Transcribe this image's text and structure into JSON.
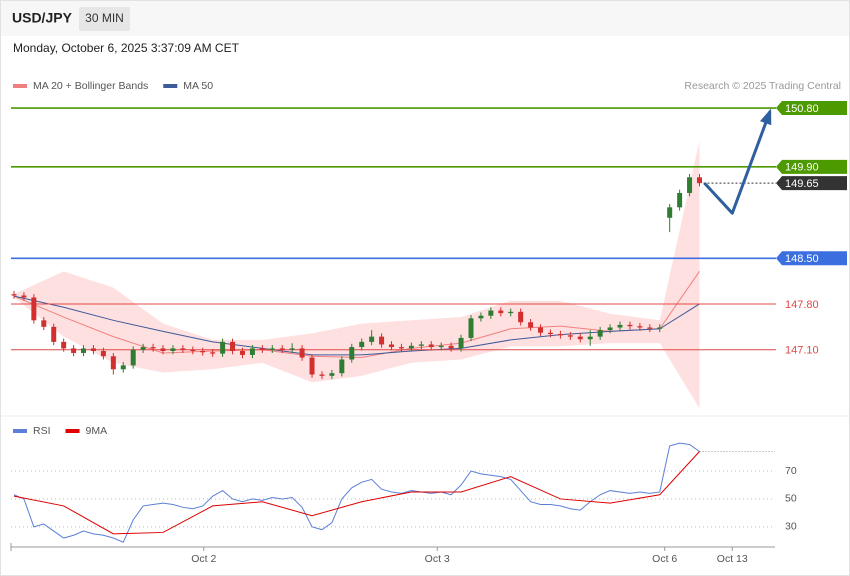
{
  "header": {
    "symbol": "USD/JPY",
    "interval": "30 MIN",
    "timestamp": "Monday, October 6, 2025 3:37:09 AM CET"
  },
  "chart_data": [
    {
      "type": "candlestick",
      "note": "Research © 2025 Trading Central",
      "xlim": [
        -0.2,
        76.6
      ],
      "ylim": [
        146.1,
        151.0
      ],
      "up_color": "#2e7d32",
      "down_color": "#d32f2f",
      "x": [
        0,
        1,
        2,
        3,
        4,
        5,
        6,
        7,
        8,
        9,
        10,
        11,
        12,
        13,
        14,
        15,
        16,
        17,
        18,
        19,
        20,
        21,
        22,
        23,
        24,
        25,
        26,
        27,
        28,
        29,
        30,
        31,
        32,
        33,
        34,
        35,
        36,
        37,
        38,
        39,
        40,
        41,
        42,
        43,
        44,
        45,
        46,
        47,
        48,
        49,
        50,
        51,
        52,
        53,
        54,
        55,
        56,
        57,
        58,
        59,
        60,
        61,
        62,
        63,
        64,
        65,
        66,
        67,
        68,
        69
      ],
      "open": [
        147.95,
        147.93,
        147.9,
        147.55,
        147.45,
        147.22,
        147.12,
        147.05,
        147.12,
        147.08,
        147.0,
        146.8,
        146.86,
        147.1,
        147.14,
        147.12,
        147.08,
        147.12,
        147.1,
        147.08,
        147.06,
        147.04,
        147.22,
        147.08,
        147.02,
        147.12,
        147.1,
        147.12,
        147.1,
        147.12,
        146.98,
        146.72,
        146.7,
        146.74,
        146.95,
        147.14,
        147.22,
        147.3,
        147.18,
        147.14,
        147.12,
        147.16,
        147.18,
        147.14,
        147.16,
        147.12,
        147.28,
        147.58,
        147.62,
        147.7,
        147.66,
        147.68,
        147.52,
        147.44,
        147.36,
        147.34,
        147.32,
        147.3,
        147.26,
        147.3,
        147.4,
        147.44,
        147.48,
        147.46,
        147.44,
        147.42,
        149.12,
        149.28,
        149.5,
        149.74
      ],
      "high": [
        148.0,
        147.98,
        147.95,
        147.6,
        147.5,
        147.27,
        147.17,
        147.17,
        147.17,
        147.13,
        147.05,
        146.91,
        147.15,
        147.19,
        147.19,
        147.17,
        147.17,
        147.17,
        147.15,
        147.13,
        147.11,
        147.27,
        147.27,
        147.13,
        147.17,
        147.17,
        147.17,
        147.17,
        147.2,
        147.17,
        147.03,
        146.77,
        146.79,
        147.0,
        147.19,
        147.27,
        147.4,
        147.35,
        147.23,
        147.19,
        147.21,
        147.23,
        147.23,
        147.21,
        147.21,
        147.33,
        147.63,
        147.67,
        147.75,
        147.75,
        147.73,
        147.73,
        147.57,
        147.49,
        147.41,
        147.39,
        147.37,
        147.35,
        147.4,
        147.45,
        147.49,
        147.53,
        147.53,
        147.51,
        147.49,
        147.49,
        149.33,
        149.55,
        149.79,
        149.79
      ],
      "low": [
        147.88,
        147.85,
        147.5,
        147.4,
        147.17,
        147.07,
        147.0,
        147.0,
        147.03,
        146.95,
        146.72,
        146.75,
        146.81,
        147.05,
        147.07,
        147.03,
        147.03,
        147.05,
        147.03,
        147.01,
        146.99,
        146.99,
        147.03,
        146.97,
        146.97,
        147.05,
        147.05,
        147.05,
        147.05,
        146.93,
        146.67,
        146.65,
        146.65,
        146.69,
        146.9,
        147.09,
        147.17,
        147.13,
        147.09,
        147.07,
        147.07,
        147.11,
        147.09,
        147.09,
        147.07,
        147.07,
        147.23,
        147.53,
        147.57,
        147.61,
        147.61,
        147.47,
        147.39,
        147.31,
        147.29,
        147.27,
        147.25,
        147.21,
        147.16,
        147.25,
        147.35,
        147.39,
        147.41,
        147.39,
        147.37,
        147.37,
        148.9,
        149.23,
        149.45,
        149.6
      ],
      "close": [
        147.93,
        147.9,
        147.55,
        147.45,
        147.22,
        147.12,
        147.05,
        147.12,
        147.08,
        147.0,
        146.8,
        146.86,
        147.1,
        147.14,
        147.12,
        147.08,
        147.12,
        147.1,
        147.08,
        147.06,
        147.04,
        147.22,
        147.08,
        147.02,
        147.12,
        147.1,
        147.12,
        147.1,
        147.12,
        146.98,
        146.72,
        146.7,
        146.74,
        146.95,
        147.14,
        147.22,
        147.3,
        147.18,
        147.14,
        147.12,
        147.16,
        147.18,
        147.14,
        147.16,
        147.12,
        147.28,
        147.58,
        147.62,
        147.7,
        147.66,
        147.68,
        147.52,
        147.44,
        147.36,
        147.34,
        147.32,
        147.3,
        147.26,
        147.3,
        147.4,
        147.44,
        147.48,
        147.46,
        147.44,
        147.42,
        147.44,
        149.28,
        149.5,
        149.74,
        149.65
      ],
      "series": [
        {
          "name": "MA 20 + Bollinger Bands",
          "color": "#f08080",
          "band_color": "#ffd6d6",
          "x": [
            0,
            5,
            10,
            15,
            20,
            25,
            30,
            35,
            40,
            45,
            50,
            55,
            60,
            65,
            69
          ],
          "values": [
            147.92,
            147.6,
            147.3,
            147.05,
            147.08,
            147.1,
            147.0,
            146.98,
            147.12,
            147.2,
            147.42,
            147.46,
            147.38,
            147.42,
            148.3
          ],
          "upper": [
            147.95,
            148.3,
            148.05,
            147.5,
            147.25,
            147.25,
            147.35,
            147.5,
            147.55,
            147.6,
            147.85,
            147.85,
            147.65,
            147.55,
            150.3
          ],
          "lower": [
            147.9,
            147.3,
            146.9,
            146.75,
            146.8,
            146.9,
            146.6,
            146.7,
            146.9,
            146.95,
            147.15,
            147.15,
            147.2,
            147.2,
            146.2
          ]
        },
        {
          "name": "MA 50",
          "color": "#3d5a99",
          "x": [
            0,
            5,
            10,
            15,
            20,
            25,
            30,
            35,
            40,
            45,
            50,
            55,
            60,
            65,
            69
          ],
          "values": [
            147.92,
            147.75,
            147.55,
            147.38,
            147.22,
            147.12,
            147.02,
            147.02,
            147.08,
            147.12,
            147.25,
            147.33,
            147.38,
            147.42,
            147.8
          ]
        }
      ],
      "forecast": {
        "color": "#2f5f9f",
        "x": [
          69.5,
          72.3,
          76.1
        ],
        "values": [
          149.65,
          149.19,
          150.75
        ]
      },
      "levels": [
        {
          "value": 150.8,
          "label": "150.80",
          "color": "#4c9a00",
          "tag": true,
          "dashed": false
        },
        {
          "value": 149.9,
          "label": "149.90",
          "color": "#4c9a00",
          "tag": true,
          "dashed": false
        },
        {
          "value": 149.65,
          "label": "149.65",
          "color": "#333333",
          "tag": true,
          "dashed": true
        },
        {
          "value": 148.5,
          "label": "148.50",
          "color": "#3b6fe0",
          "tag": true,
          "dashed": false
        },
        {
          "value": 147.8,
          "label": "147.80",
          "color": "#e04848",
          "tag": false,
          "dashed": false
        },
        {
          "value": 147.1,
          "label": "147.10",
          "color": "#e04848",
          "tag": false,
          "dashed": false
        }
      ]
    },
    {
      "type": "line",
      "xlim": [
        -0.2,
        76.6
      ],
      "ylim": [
        17,
        108
      ],
      "yticks": [
        30,
        50,
        70
      ],
      "grid": true,
      "xticks": [
        {
          "value": 19.1,
          "label": "Oct 2"
        },
        {
          "value": 42.6,
          "label": "Oct 3"
        },
        {
          "value": 65.5,
          "label": "Oct 6"
        },
        {
          "value": 72.3,
          "label": "Oct 13"
        }
      ],
      "series": [
        {
          "name": "RSI",
          "color": "#5b7fd6",
          "x": [
            0,
            1,
            2,
            3,
            4,
            5,
            6,
            7,
            8,
            9,
            10,
            11,
            12,
            13,
            14,
            15,
            16,
            17,
            18,
            19,
            20,
            21,
            22,
            23,
            24,
            25,
            26,
            27,
            28,
            29,
            30,
            31,
            32,
            33,
            34,
            35,
            36,
            37,
            38,
            39,
            40,
            41,
            42,
            43,
            44,
            45,
            46,
            47,
            48,
            49,
            50,
            51,
            52,
            53,
            54,
            55,
            56,
            57,
            58,
            59,
            60,
            61,
            62,
            63,
            64,
            65,
            66,
            67,
            68,
            69
          ],
          "values": [
            53,
            50,
            30,
            32,
            27,
            22,
            24,
            27,
            25,
            24,
            22,
            19,
            35,
            45,
            46,
            47,
            46,
            44,
            43,
            45,
            52,
            56,
            50,
            48,
            50,
            49,
            51,
            50,
            51,
            44,
            30,
            28,
            33,
            50,
            58,
            62,
            64,
            57,
            55,
            54,
            56,
            55,
            54,
            55,
            53,
            60,
            70,
            68,
            67,
            66,
            64,
            56,
            48,
            46,
            46,
            45,
            43,
            42,
            48,
            53,
            56,
            55,
            54,
            55,
            54,
            55,
            88,
            90,
            89,
            84
          ]
        },
        {
          "name": "9MA",
          "color": "#e00000",
          "x": [
            0,
            5,
            10,
            15,
            20,
            25,
            30,
            35,
            40,
            45,
            50,
            55,
            60,
            65,
            69
          ],
          "values": [
            52,
            45,
            25,
            26,
            45,
            48,
            38,
            48,
            55,
            55,
            66,
            50,
            47,
            53,
            84
          ]
        }
      ]
    }
  ]
}
